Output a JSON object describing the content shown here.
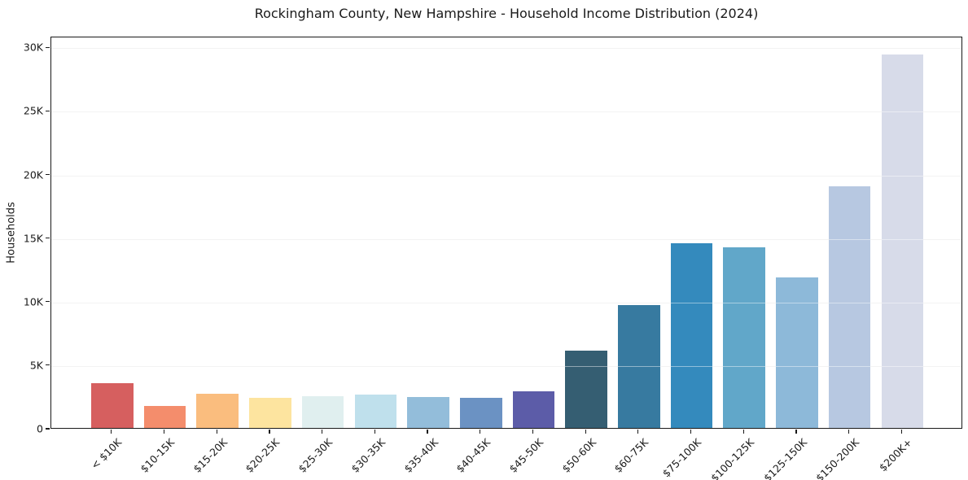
{
  "chart_data": {
    "type": "bar",
    "title": "Rockingham County, New Hampshire - Household Income Distribution (2024)",
    "xlabel": "",
    "ylabel": "Households",
    "categories": [
      "< $10K",
      "$10-15K",
      "$15-20K",
      "$20-25K",
      "$25-30K",
      "$30-35K",
      "$35-40K",
      "$40-45K",
      "$45-50K",
      "$50-60K",
      "$60-75K",
      "$75-100K",
      "$100-125K",
      "$125-150K",
      "$150-200K",
      "$200K+"
    ],
    "values": [
      3500,
      1750,
      2700,
      2350,
      2500,
      2600,
      2450,
      2350,
      2900,
      6100,
      9650,
      14500,
      14200,
      11850,
      19000,
      29400
    ],
    "bar_colors": [
      "#d65f5f",
      "#f48d6c",
      "#fabd7e",
      "#fde49f",
      "#e0efef",
      "#bfe0ec",
      "#93bdda",
      "#6b92c3",
      "#5c5ca8",
      "#355e72",
      "#377aa0",
      "#348abd",
      "#61a7c9",
      "#8db9d9",
      "#b7c8e1",
      "#d7dbe9"
    ],
    "ylim": [
      0,
      30850
    ],
    "yticks": [
      {
        "value": 0,
        "label": "0"
      },
      {
        "value": 5000,
        "label": "5K"
      },
      {
        "value": 10000,
        "label": "10K"
      },
      {
        "value": 15000,
        "label": "15K"
      },
      {
        "value": 20000,
        "label": "20K"
      },
      {
        "value": 25000,
        "label": "25K"
      },
      {
        "value": 30000,
        "label": "30K"
      }
    ],
    "grid": "horizontal",
    "legend": "none",
    "axis_color": "#1a1a1a",
    "grid_color": "#e9e9e9"
  }
}
